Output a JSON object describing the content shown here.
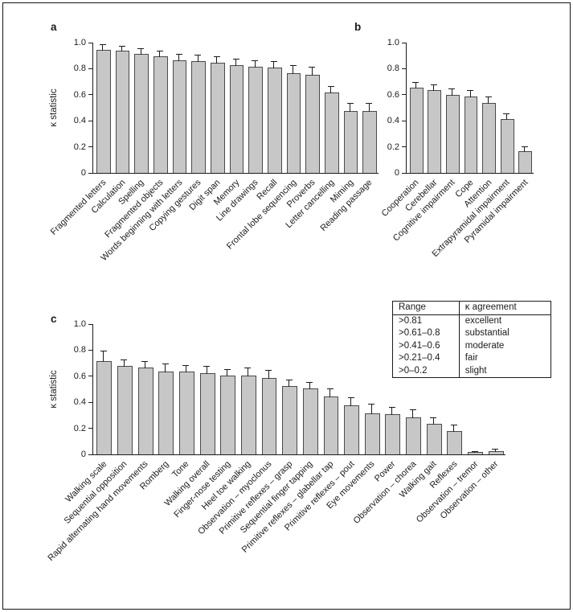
{
  "figure": {
    "background": "#ffffff",
    "border_color": "#141414",
    "bar_fill": "#c7c7c7",
    "bar_border": "#4a4a4a",
    "axis_color": "#1b1b1b"
  },
  "legend_table": {
    "headers": [
      "Range",
      "κ agreement"
    ],
    "rows": [
      [
        ">0.81",
        "excellent"
      ],
      [
        ">0.61–0.8",
        "substantial"
      ],
      [
        ">0.41–0.6",
        "moderate"
      ],
      [
        ">0.21–0.4",
        "fair"
      ],
      [
        ">0–0.2",
        "slight"
      ]
    ]
  },
  "chart_data": [
    {
      "type": "bar",
      "panel": "a",
      "ylabel": "κ statistic",
      "xlabel": "",
      "ylim": [
        0,
        1.0
      ],
      "yticks": [
        "1.0",
        "0.8",
        "0.6",
        "0.4",
        "0.2",
        "0"
      ],
      "grid": false,
      "categories": [
        "Fragmented letters",
        "Calculation",
        "Spelling",
        "Fragmented objects",
        "Words beginning with letters",
        "Copying gestures",
        "Digit span",
        "Memory",
        "Line drawings",
        "Recall",
        "Frontal lobe sequencing",
        "Proverbs",
        "Letter cancelling",
        "Miming",
        "Reading passage"
      ],
      "values": [
        0.94,
        0.93,
        0.91,
        0.89,
        0.86,
        0.85,
        0.84,
        0.82,
        0.81,
        0.8,
        0.76,
        0.75,
        0.61,
        0.47,
        0.47
      ],
      "errors": [
        0.04,
        0.04,
        0.04,
        0.04,
        0.05,
        0.05,
        0.05,
        0.05,
        0.05,
        0.05,
        0.06,
        0.06,
        0.05,
        0.06,
        0.06
      ]
    },
    {
      "type": "bar",
      "panel": "b",
      "xlabel": "",
      "ylim": [
        0,
        1.0
      ],
      "yticks": [
        "1.0",
        "0.8",
        "0.6",
        "0.4",
        "0.2",
        "0"
      ],
      "grid": false,
      "categories": [
        "Cooperation",
        "Cerebellar",
        "Cognitive impairment",
        "Cope",
        "Attention",
        "Extrapyramidal impairment",
        "Pyramidal impairment"
      ],
      "values": [
        0.65,
        0.63,
        0.59,
        0.58,
        0.53,
        0.41,
        0.16
      ],
      "errors": [
        0.04,
        0.04,
        0.05,
        0.05,
        0.05,
        0.04,
        0.04
      ]
    },
    {
      "type": "bar",
      "panel": "c",
      "ylabel": "κ statistic",
      "xlabel": "",
      "ylim": [
        0,
        1.0
      ],
      "yticks": [
        "1.0",
        "0.8",
        "0.6",
        "0.4",
        "0.2",
        "0"
      ],
      "grid": false,
      "categories": [
        "Walking scale",
        "Sequential opposition",
        "Rapid alternating hand movements",
        "Romberg",
        "Tone",
        "Walking overall",
        "Finger-nose testing",
        "Heel toe walking",
        "Observation – myoclonus",
        "Primitive reflexes – grasp",
        "Sequential finger tapping",
        "Primitive reflexes – glabellar tap",
        "Primitive reflexes – pout",
        "Eye movements",
        "Power",
        "Observation – chorea",
        "Walking gait",
        "Reflexes",
        "Observation – tremor",
        "Observation – other"
      ],
      "values": [
        0.71,
        0.67,
        0.66,
        0.63,
        0.63,
        0.62,
        0.6,
        0.6,
        0.58,
        0.52,
        0.5,
        0.44,
        0.37,
        0.31,
        0.3,
        0.28,
        0.23,
        0.17,
        0.01,
        0.02
      ],
      "errors": [
        0.08,
        0.05,
        0.05,
        0.06,
        0.05,
        0.05,
        0.05,
        0.06,
        0.06,
        0.05,
        0.05,
        0.06,
        0.06,
        0.07,
        0.06,
        0.06,
        0.05,
        0.05,
        0.01,
        0.02
      ]
    }
  ]
}
